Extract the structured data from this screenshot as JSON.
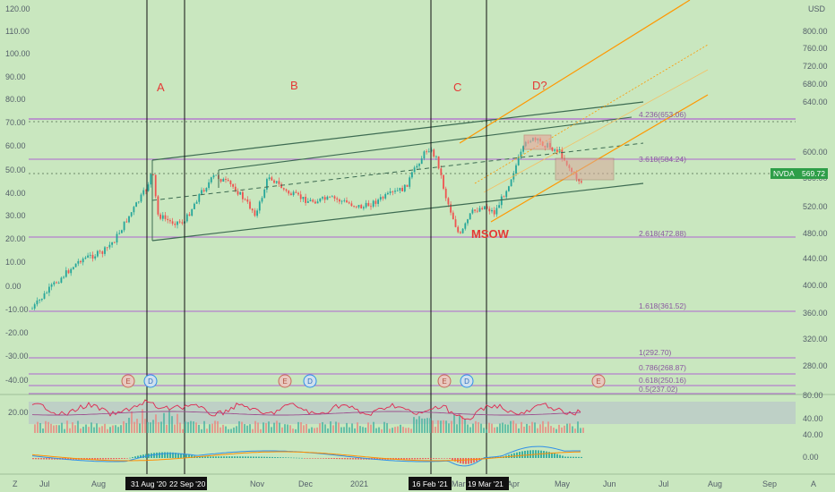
{
  "colors": {
    "background": "#c9e7bf",
    "axis_text": "#55606a",
    "bull": "#26a69a",
    "bear": "#ef5350",
    "channel_line": "#3d6b52",
    "orange": "#ff9800",
    "fib": "#b064d0",
    "wave_label": "#e53935",
    "price_tag": "#2e9e48",
    "rsi": "#e0284f",
    "macd": "#2f8fe8",
    "signal": "#ff8f00"
  },
  "left_axis": {
    "labels": [
      "120.00",
      "110.00",
      "100.00",
      "90.00",
      "80.00",
      "70.00",
      "60.00",
      "50.00",
      "40.00",
      "30.00",
      "20.00",
      "10.00",
      "0.00",
      "-10.00",
      "-20.00",
      "-30.00",
      "-40.00"
    ]
  },
  "right_axis": {
    "currency": "USD",
    "labels": [
      "800.00",
      "760.00",
      "720.00",
      "680.00",
      "640.00",
      "600.00",
      "560.00",
      "520.00",
      "480.00",
      "440.00",
      "400.00",
      "360.00",
      "320.00",
      "280.00"
    ]
  },
  "rsi_axis": {
    "labels": [
      "80.00",
      "40.00"
    ],
    "left_label": "20.00"
  },
  "macd_axis": {
    "labels": [
      "40.00",
      "0.00"
    ]
  },
  "time_axis": {
    "corner_left": "Z",
    "corner_right": "A",
    "labels": [
      "Jul",
      "Aug",
      "Nov",
      "Dec",
      "2021",
      "Mar",
      "Apr",
      "May",
      "Jun",
      "Jul",
      "Aug",
      "Sep"
    ],
    "date_tags": [
      "31 Aug '20",
      "22 Sep '20",
      "16 Feb '21",
      "19 Mar '21"
    ]
  },
  "wave_labels": [
    "A",
    "B",
    "C",
    "D?"
  ],
  "msow_label": "MSOW",
  "fib_levels": [
    "4.236(653.06)",
    "3.618(584.24)",
    "2.618(472.88)",
    "1.618(361.52)",
    "1(292.70)",
    "0.786(268.87)",
    "0.618(250.16)",
    "0.5(237.02)"
  ],
  "price_tag": {
    "symbol": "NVDA",
    "value": "569.72"
  },
  "event_markers": [
    "E",
    "D",
    "E",
    "D",
    "E",
    "D",
    "E"
  ]
}
